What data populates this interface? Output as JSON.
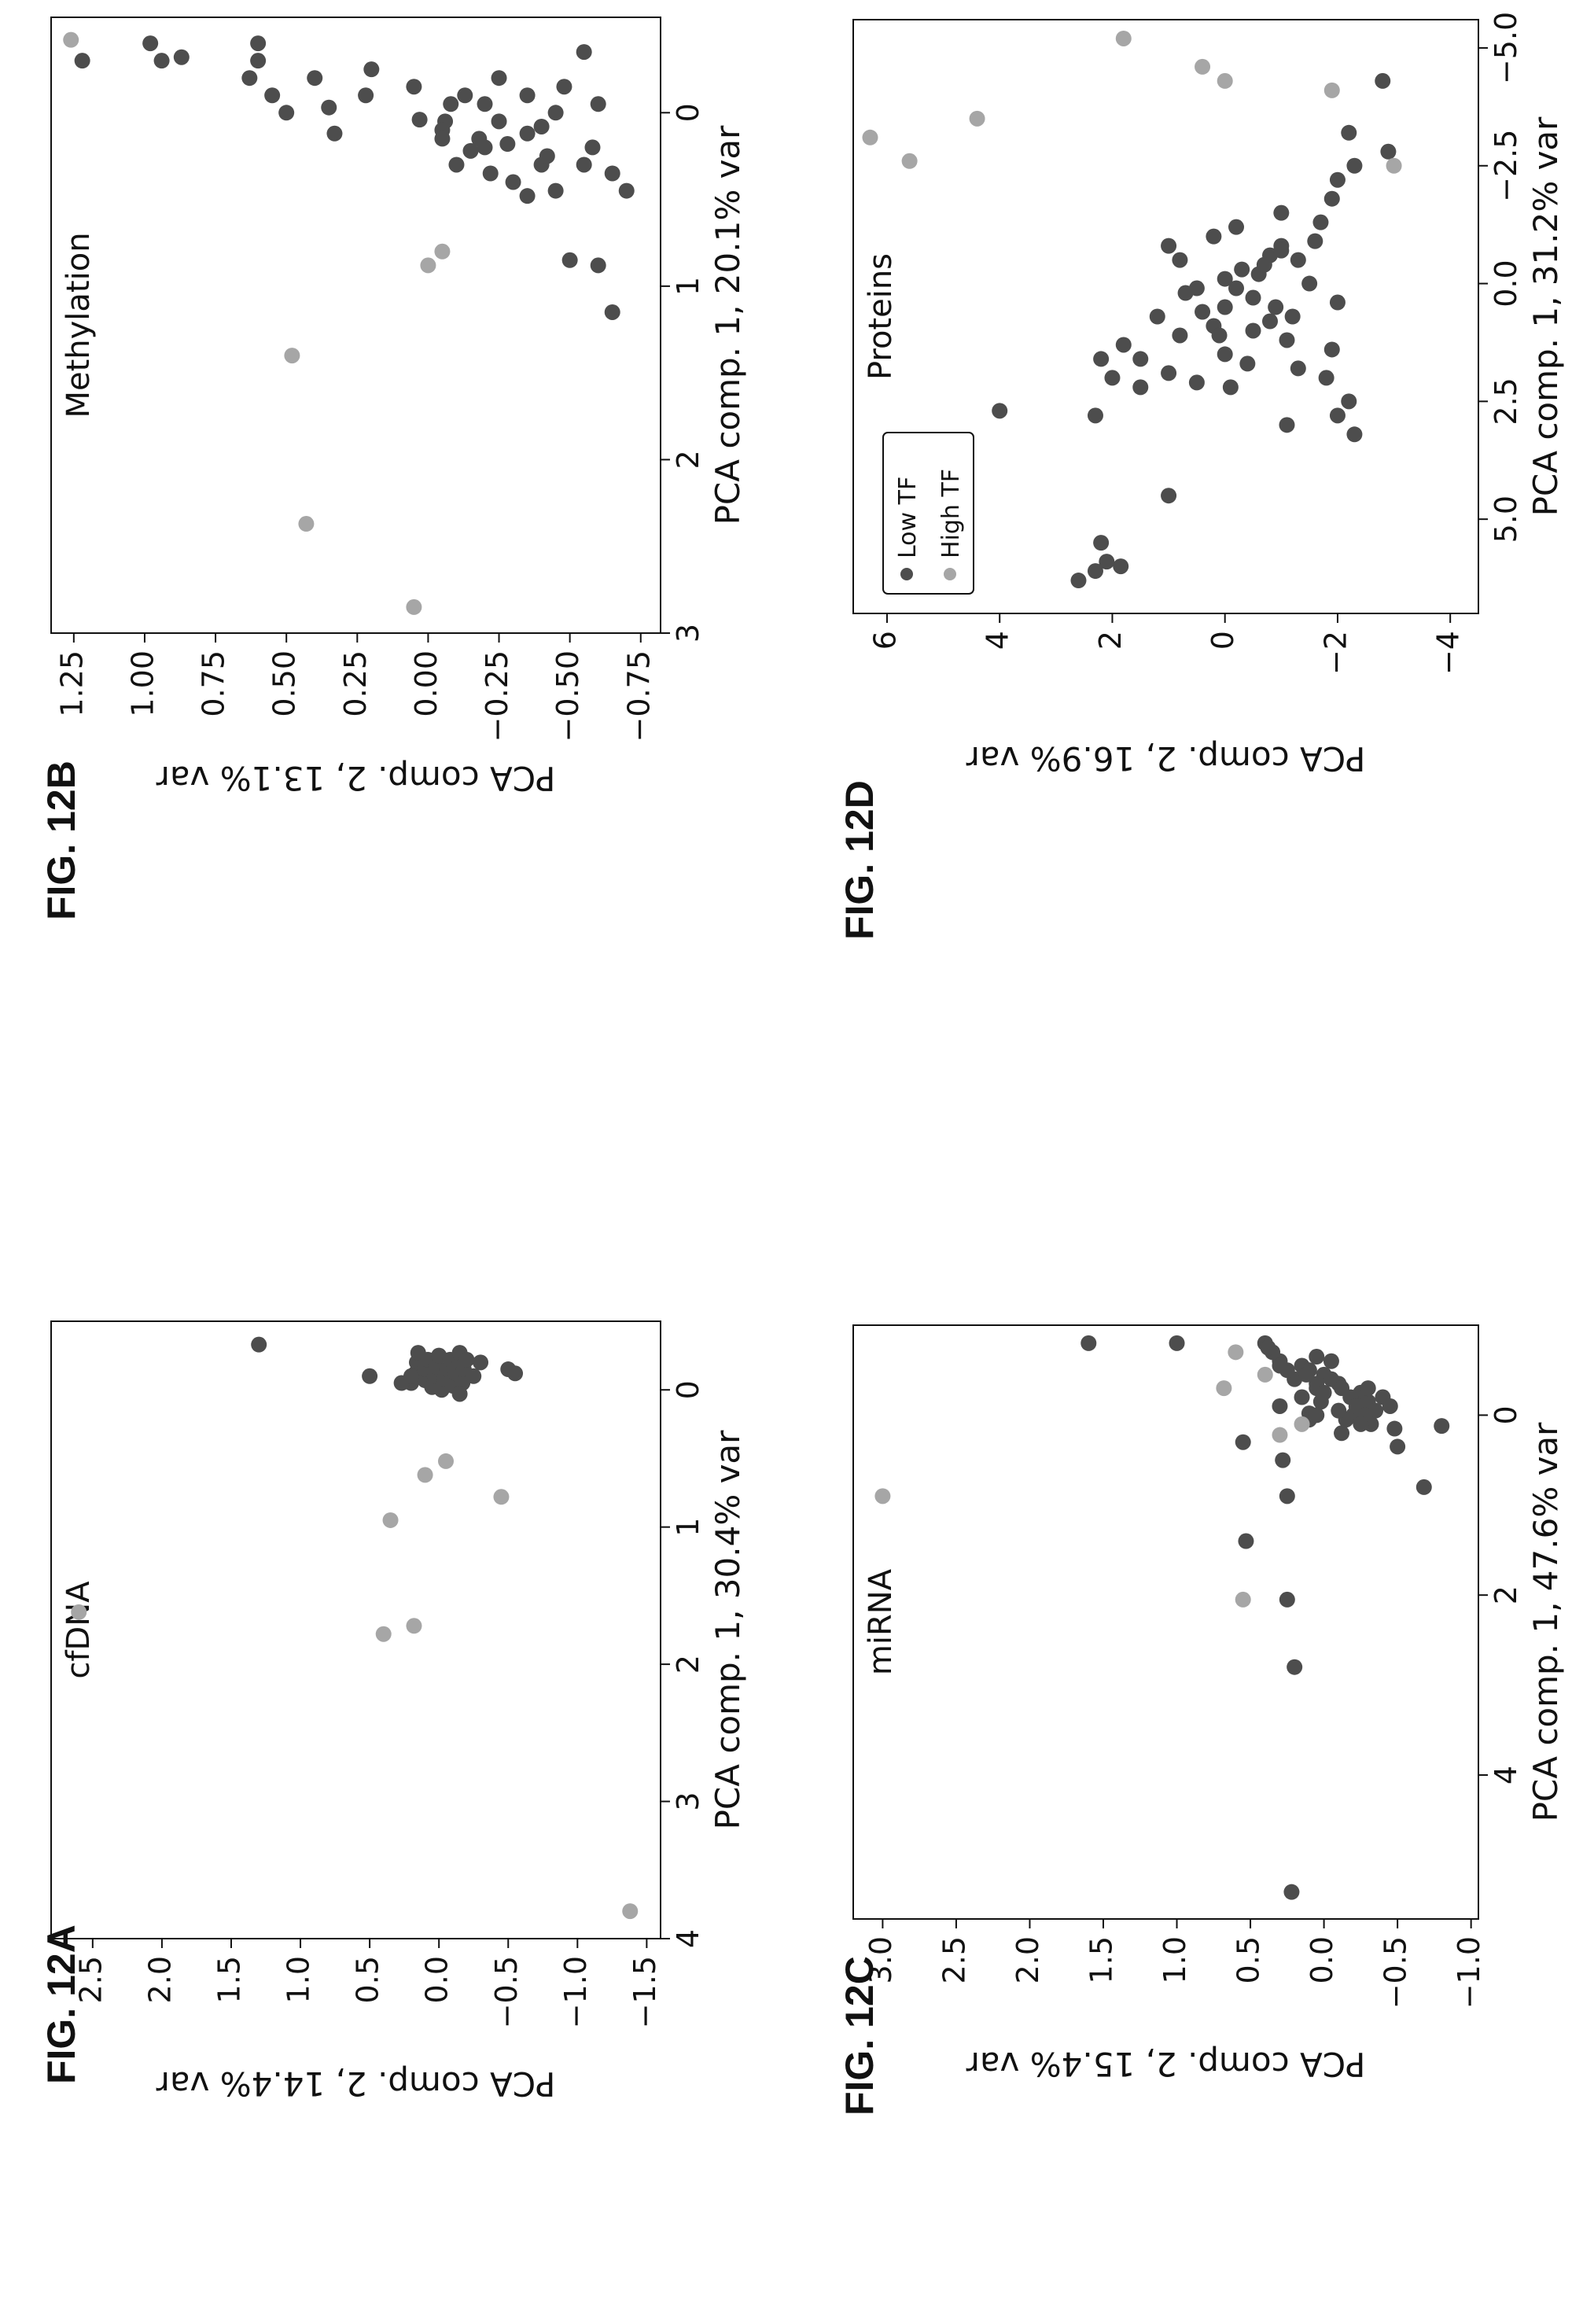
{
  "colors": {
    "low": "#4d4d4d",
    "high": "#a6a6a6",
    "axis": "#111111"
  },
  "chart_data": [
    {
      "id": "12A",
      "fig_label": "FIG. 12A",
      "type": "scatter",
      "title": "cfDNA",
      "xlabel": "PCA comp. 1, 30.4% var",
      "ylabel": "PCA comp. 2, 14.4% var",
      "xlim": [
        -0.5,
        4.0
      ],
      "ylim": [
        -1.6,
        2.8
      ],
      "xticks": [
        0,
        1,
        2,
        3,
        4
      ],
      "yticks": [
        -1.5,
        -1.0,
        -0.5,
        0.0,
        0.5,
        1.0,
        1.5,
        2.0,
        2.5
      ],
      "series": [
        {
          "name": "Low TF",
          "points": [
            [
              -0.33,
              1.3
            ],
            [
              -0.1,
              0.5
            ],
            [
              -0.05,
              0.2
            ],
            [
              -0.12,
              0.17
            ],
            [
              -0.2,
              0.16
            ],
            [
              -0.27,
              0.15
            ],
            [
              -0.07,
              0.1
            ],
            [
              -0.15,
              0.1
            ],
            [
              -0.22,
              0.08
            ],
            [
              -0.02,
              0.05
            ],
            [
              -0.1,
              0.03
            ],
            [
              -0.17,
              0.02
            ],
            [
              -0.25,
              0.0
            ],
            [
              0.0,
              -0.02
            ],
            [
              -0.08,
              -0.04
            ],
            [
              -0.15,
              -0.06
            ],
            [
              -0.22,
              -0.08
            ],
            [
              -0.03,
              -0.1
            ],
            [
              -0.12,
              -0.12
            ],
            [
              -0.2,
              -0.15
            ],
            [
              -0.27,
              -0.15
            ],
            [
              -0.05,
              -0.17
            ],
            [
              -0.15,
              -0.18
            ],
            [
              -0.22,
              -0.2
            ],
            [
              -0.1,
              -0.25
            ],
            [
              -0.05,
              0.27
            ],
            [
              -0.15,
              -0.5
            ],
            [
              -0.12,
              -0.55
            ],
            [
              -0.2,
              -0.3
            ],
            [
              0.03,
              -0.15
            ],
            [
              -0.1,
              0.2
            ]
          ]
        },
        {
          "name": "High TF",
          "points": [
            [
              1.62,
              2.6
            ],
            [
              1.78,
              0.4
            ],
            [
              1.72,
              0.18
            ],
            [
              0.95,
              0.35
            ],
            [
              0.62,
              0.1
            ],
            [
              0.52,
              -0.05
            ],
            [
              0.78,
              -0.45
            ],
            [
              3.8,
              -1.38
            ]
          ]
        }
      ]
    },
    {
      "id": "12B",
      "fig_label": "FIG. 12B",
      "type": "scatter",
      "title": "Methylation",
      "xlabel": "PCA comp. 1, 20.1% var",
      "ylabel": "PCA comp. 2, 13.1% var",
      "xlim": [
        -0.55,
        3.0
      ],
      "ylim": [
        -0.82,
        1.33
      ],
      "xticks": [
        0,
        1,
        2,
        3
      ],
      "yticks": [
        -0.75,
        -0.5,
        -0.25,
        0.0,
        0.25,
        0.5,
        0.75,
        1.0,
        1.25
      ],
      "series": [
        {
          "name": "Low TF",
          "points": [
            [
              -0.3,
              1.22
            ],
            [
              -0.4,
              0.98
            ],
            [
              -0.3,
              0.94
            ],
            [
              -0.32,
              0.87
            ],
            [
              -0.2,
              0.63
            ],
            [
              -0.3,
              0.6
            ],
            [
              -0.4,
              0.6
            ],
            [
              -0.1,
              0.55
            ],
            [
              0.0,
              0.5
            ],
            [
              -0.2,
              0.4
            ],
            [
              -0.03,
              0.35
            ],
            [
              0.12,
              0.33
            ],
            [
              -0.1,
              0.22
            ],
            [
              -0.25,
              0.2
            ],
            [
              0.04,
              0.03
            ],
            [
              -0.15,
              0.05
            ],
            [
              0.05,
              -0.06
            ],
            [
              0.1,
              -0.05
            ],
            [
              -0.05,
              -0.08
            ],
            [
              0.15,
              -0.18
            ],
            [
              0.2,
              -0.2
            ],
            [
              0.22,
              -0.15
            ],
            [
              -0.1,
              -0.13
            ],
            [
              0.35,
              -0.22
            ],
            [
              0.4,
              -0.3
            ],
            [
              0.18,
              -0.28
            ],
            [
              0.12,
              -0.35
            ],
            [
              0.3,
              -0.4
            ],
            [
              0.48,
              -0.35
            ],
            [
              0.45,
              -0.45
            ],
            [
              0.08,
              -0.4
            ],
            [
              0.0,
              -0.45
            ],
            [
              -0.15,
              -0.48
            ],
            [
              0.3,
              -0.55
            ],
            [
              0.45,
              -0.7
            ],
            [
              0.85,
              -0.5
            ],
            [
              0.88,
              -0.6
            ],
            [
              1.15,
              -0.65
            ],
            [
              0.35,
              -0.65
            ],
            [
              0.2,
              -0.58
            ],
            [
              -0.05,
              -0.6
            ],
            [
              -0.35,
              -0.55
            ],
            [
              -0.1,
              -0.35
            ],
            [
              0.25,
              -0.42
            ],
            [
              0.05,
              -0.25
            ],
            [
              -0.2,
              -0.25
            ],
            [
              0.15,
              -0.05
            ],
            [
              0.3,
              -0.1
            ],
            [
              -0.05,
              -0.2
            ]
          ]
        },
        {
          "name": "High TF",
          "points": [
            [
              2.85,
              0.05
            ],
            [
              2.37,
              0.43
            ],
            [
              1.4,
              0.48
            ],
            [
              0.88,
              0.0
            ],
            [
              0.8,
              -0.05
            ],
            [
              -0.42,
              1.26
            ]
          ]
        }
      ]
    },
    {
      "id": "12C",
      "fig_label": "FIG. 12C",
      "type": "scatter",
      "title": "miRNA",
      "xlabel": "PCA comp. 1, 47.6% var",
      "ylabel": "PCA comp. 2, 15.4% var",
      "xlim": [
        -1.0,
        5.6
      ],
      "ylim": [
        -1.05,
        3.2
      ],
      "xticks": [
        0,
        2,
        4
      ],
      "yticks": [
        -1.0,
        -0.5,
        0.0,
        0.5,
        1.0,
        1.5,
        2.0,
        2.5,
        3.0
      ],
      "series": [
        {
          "name": "Low TF",
          "points": [
            [
              5.3,
              0.22
            ],
            [
              2.8,
              0.2
            ],
            [
              2.05,
              0.25
            ],
            [
              1.4,
              0.53
            ],
            [
              0.9,
              0.25
            ],
            [
              0.8,
              -0.68
            ],
            [
              0.5,
              0.28
            ],
            [
              0.3,
              0.55
            ],
            [
              0.2,
              -0.12
            ],
            [
              0.1,
              -0.32
            ],
            [
              0.15,
              -0.48
            ],
            [
              0.12,
              -0.8
            ],
            [
              -0.02,
              0.1
            ],
            [
              -0.1,
              0.3
            ],
            [
              -0.2,
              0.15
            ],
            [
              -0.3,
              0.05
            ],
            [
              -0.4,
              0.2
            ],
            [
              -0.5,
              0.25
            ],
            [
              -0.6,
              0.3
            ],
            [
              -0.7,
              0.35
            ],
            [
              -0.8,
              1.6
            ],
            [
              -0.8,
              0.4
            ],
            [
              -0.75,
              0.38
            ],
            [
              -0.8,
              1.0
            ],
            [
              -0.55,
              0.15
            ],
            [
              -0.45,
              0.0
            ],
            [
              -0.35,
              -0.1
            ],
            [
              -0.25,
              -0.25
            ],
            [
              -0.15,
              -0.3
            ],
            [
              -0.05,
              -0.35
            ],
            [
              0.0,
              -0.2
            ],
            [
              0.05,
              -0.15
            ],
            [
              -0.6,
              -0.05
            ],
            [
              -0.5,
              0.1
            ],
            [
              -0.4,
              -0.05
            ],
            [
              -0.3,
              -0.12
            ],
            [
              -0.2,
              -0.18
            ],
            [
              -0.1,
              -0.22
            ],
            [
              0.0,
              -0.28
            ],
            [
              0.1,
              -0.25
            ],
            [
              -0.65,
              0.05
            ],
            [
              -0.35,
              0.05
            ],
            [
              -0.25,
              0.0
            ],
            [
              -0.15,
              0.02
            ],
            [
              -0.05,
              -0.1
            ],
            [
              -0.45,
              0.12
            ],
            [
              -0.55,
              0.3
            ],
            [
              0.05,
              0.1
            ],
            [
              -0.3,
              -0.3
            ],
            [
              -0.2,
              -0.4
            ],
            [
              -0.1,
              -0.45
            ],
            [
              0.35,
              -0.5
            ],
            [
              0.0,
              0.05
            ]
          ]
        },
        {
          "name": "High TF",
          "points": [
            [
              0.9,
              3.0
            ],
            [
              2.05,
              0.55
            ],
            [
              0.22,
              0.3
            ],
            [
              -0.3,
              0.68
            ],
            [
              -0.7,
              0.6
            ],
            [
              -0.45,
              0.4
            ],
            [
              0.1,
              0.15
            ]
          ]
        }
      ]
    },
    {
      "id": "12D",
      "fig_label": "FIG. 12D",
      "type": "scatter",
      "title": "Proteins",
      "xlabel": "PCA comp. 1, 31.2% var",
      "ylabel": "PCA comp. 2, 16.9% var",
      "xlim": [
        -5.6,
        7.0
      ],
      "ylim": [
        -4.5,
        6.6
      ],
      "xticks": [
        -5.0,
        -2.5,
        0.0,
        2.5,
        5.0
      ],
      "yticks": [
        -4,
        -2,
        0,
        2,
        4,
        6
      ],
      "legend": {
        "location": "top-right",
        "entries": [
          "Low TF",
          "High TF"
        ]
      },
      "series": [
        {
          "name": "Low TF",
          "points": [
            [
              6.3,
              2.6
            ],
            [
              6.1,
              2.3
            ],
            [
              5.9,
              2.1
            ],
            [
              6.0,
              1.85
            ],
            [
              5.5,
              2.2
            ],
            [
              4.5,
              1.0
            ],
            [
              2.8,
              2.3
            ],
            [
              2.2,
              -0.1
            ],
            [
              2.1,
              0.5
            ],
            [
              1.9,
              1.0
            ],
            [
              1.7,
              -0.4
            ],
            [
              1.5,
              0.0
            ],
            [
              1.6,
              1.5
            ],
            [
              1.3,
              1.8
            ],
            [
              1.1,
              0.8
            ],
            [
              0.9,
              0.2
            ],
            [
              0.7,
              1.2
            ],
            [
              0.5,
              0.0
            ],
            [
              0.3,
              -0.5
            ],
            [
              0.1,
              0.5
            ],
            [
              -0.1,
              0.0
            ],
            [
              -0.3,
              -0.3
            ],
            [
              -0.5,
              0.8
            ],
            [
              -0.8,
              1.0
            ],
            [
              -1.0,
              0.2
            ],
            [
              -1.2,
              -0.2
            ],
            [
              -0.8,
              -1.0
            ],
            [
              -0.5,
              -1.3
            ],
            [
              -0.2,
              -0.6
            ],
            [
              0.0,
              -1.5
            ],
            [
              0.4,
              -2.0
            ],
            [
              0.6,
              0.4
            ],
            [
              0.8,
              -0.8
            ],
            [
              1.0,
              -0.5
            ],
            [
              1.2,
              -1.1
            ],
            [
              2.0,
              -1.8
            ],
            [
              2.5,
              -2.2
            ],
            [
              3.2,
              -2.3
            ],
            [
              3.0,
              -1.1
            ],
            [
              2.8,
              -2.0
            ],
            [
              1.4,
              -1.9
            ],
            [
              0.2,
              0.7
            ],
            [
              -0.6,
              -0.8
            ],
            [
              -1.3,
              -1.7
            ],
            [
              -1.8,
              -1.9
            ],
            [
              -2.2,
              -2.0
            ],
            [
              -2.5,
              -2.3
            ],
            [
              -2.8,
              -2.9
            ],
            [
              -3.2,
              -2.2
            ],
            [
              -4.3,
              -2.8
            ],
            [
              -1.5,
              -1.0
            ],
            [
              -0.9,
              -1.6
            ],
            [
              0.5,
              -0.9
            ],
            [
              1.8,
              -1.3
            ],
            [
              2.2,
              1.5
            ],
            [
              2.0,
              2.0
            ],
            [
              1.6,
              2.2
            ],
            [
              2.7,
              4.0
            ],
            [
              -0.4,
              -0.7
            ],
            [
              -0.7,
              -1.0
            ],
            [
              0.7,
              -1.2
            ],
            [
              1.1,
              0.1
            ],
            [
              0.1,
              -0.2
            ]
          ]
        },
        {
          "name": "High TF",
          "points": [
            [
              -3.1,
              6.3
            ],
            [
              -2.6,
              5.6
            ],
            [
              -3.5,
              4.4
            ],
            [
              -4.3,
              0.0
            ],
            [
              -4.6,
              0.4
            ],
            [
              -5.2,
              1.8
            ],
            [
              -4.1,
              -1.9
            ],
            [
              -2.5,
              -3.0
            ]
          ]
        }
      ]
    }
  ]
}
